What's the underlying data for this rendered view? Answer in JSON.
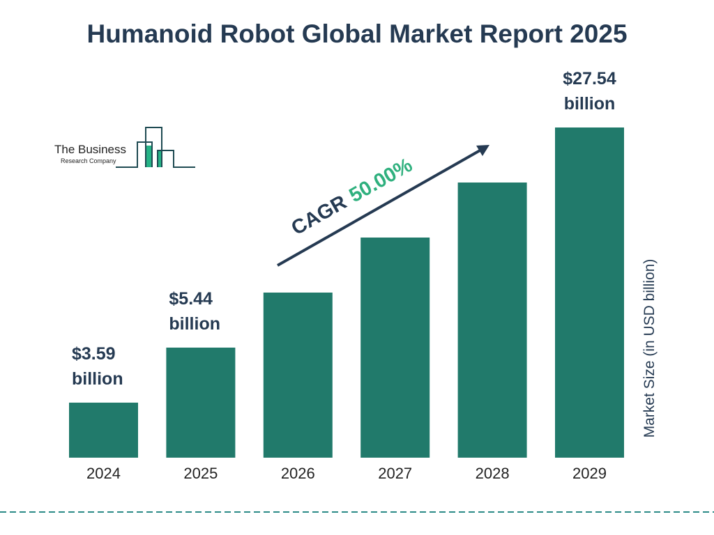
{
  "chart_data": {
    "type": "bar",
    "title": "Humanoid Robot Global Market Report 2025",
    "ylabel": "Market Size (in USD billion)",
    "xlabel": "",
    "categories": [
      "2024",
      "2025",
      "2026",
      "2027",
      "2028",
      "2029"
    ],
    "values": [
      3.59,
      5.44,
      null,
      null,
      null,
      27.54
    ],
    "data_labels": [
      {
        "index": 0,
        "line1": "$3.59",
        "line2": "billion"
      },
      {
        "index": 1,
        "line1": "$5.44",
        "line2": "billion"
      },
      {
        "index": 5,
        "line1": "$27.54",
        "line2": "billion"
      }
    ],
    "annotation": {
      "label": "CAGR",
      "value": "50.00%"
    },
    "grid": false,
    "colors": {
      "bar": "#217a6b",
      "title": "#253a52",
      "cagr": "#2fb07e",
      "divider": "#2a8a86"
    }
  },
  "logo": {
    "line1": "The Business",
    "line2": "Research Company"
  }
}
